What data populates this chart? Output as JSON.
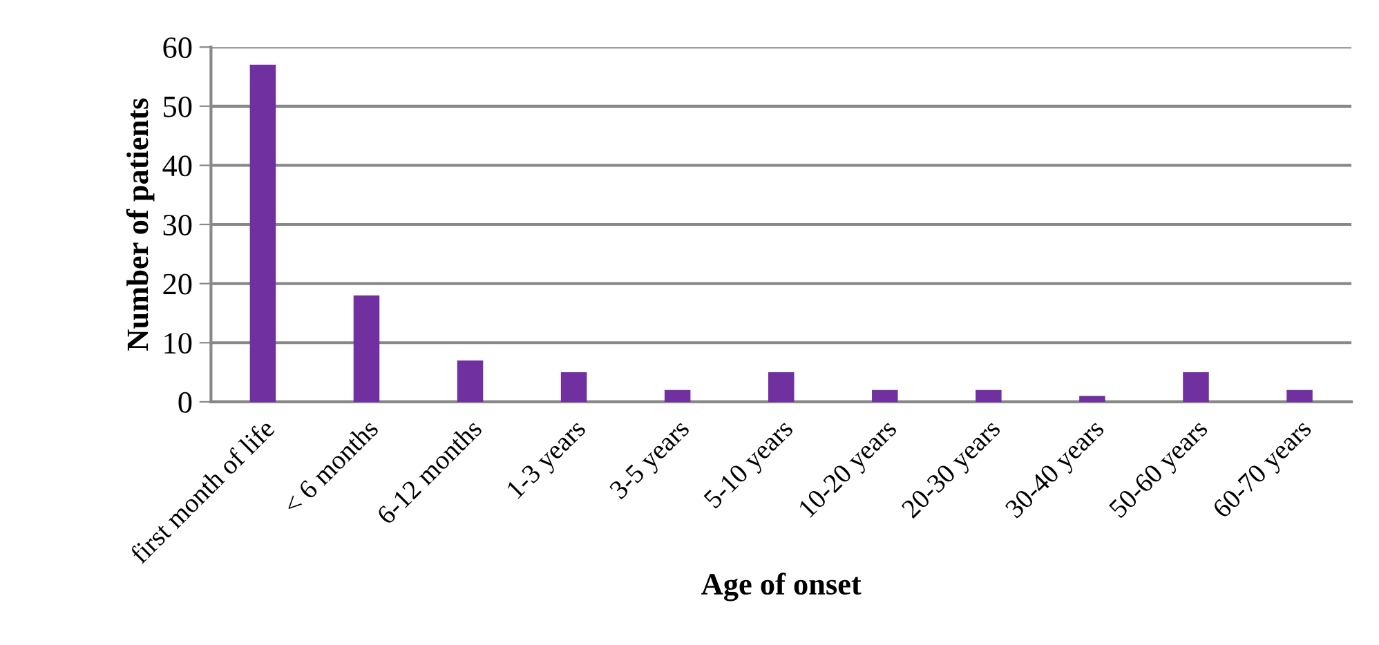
{
  "chart_data": {
    "type": "bar",
    "xlabel": "Age of onset",
    "ylabel": "Number of patients",
    "categories": [
      "first month of life",
      "< 6 months",
      "6-12 months",
      "1-3 years",
      "3-5 years",
      "5-10 years",
      "10-20 years",
      "20-30 years",
      "30-40 years",
      "50-60 years",
      "60-70 years"
    ],
    "values": [
      57,
      18,
      7,
      5,
      2,
      5,
      2,
      2,
      1,
      5,
      2
    ],
    "color": "#7030a0",
    "ylim": [
      0,
      60
    ],
    "yticks": [
      0,
      10,
      20,
      30,
      40,
      50,
      60
    ],
    "grid": "y",
    "legend": false
  }
}
